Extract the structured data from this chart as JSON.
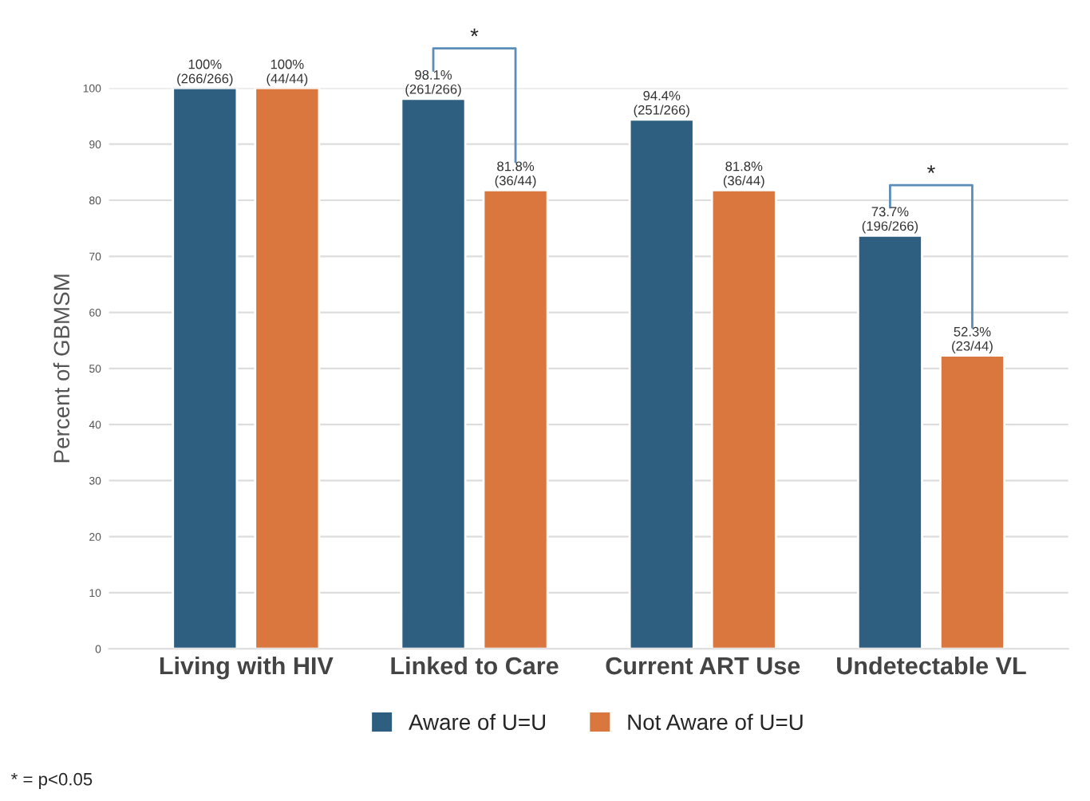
{
  "chart_data": {
    "type": "bar",
    "ylabel": "Percent of GBMSM",
    "categories": [
      "Living with HIV",
      "Linked to Care",
      "Current ART Use",
      "Undetectable VL"
    ],
    "series": [
      {
        "name": "Aware of U=U",
        "color": "#2e5f80",
        "values": [
          100,
          98.1,
          94.4,
          73.7
        ],
        "value_labels": [
          "100%\n(266/266)",
          "98.1%\n(261/266)",
          "94.4%\n(251/266)",
          "73.7%\n(196/266)"
        ]
      },
      {
        "name": "Not Aware of U=U",
        "color": "#d9773f",
        "values": [
          100,
          81.8,
          81.8,
          52.3
        ],
        "value_labels": [
          "100%\n(44/44)",
          "81.8%\n(36/44)",
          "81.8%\n(36/44)",
          "52.3%\n(23/44)"
        ]
      }
    ],
    "ylim": [
      0,
      100
    ],
    "yticks": [
      0,
      10,
      20,
      30,
      40,
      50,
      60,
      70,
      80,
      90,
      100
    ],
    "grid": "y",
    "legend": "bottom",
    "annotations": [
      "*",
      "*",
      "* = p<0.05"
    ]
  }
}
